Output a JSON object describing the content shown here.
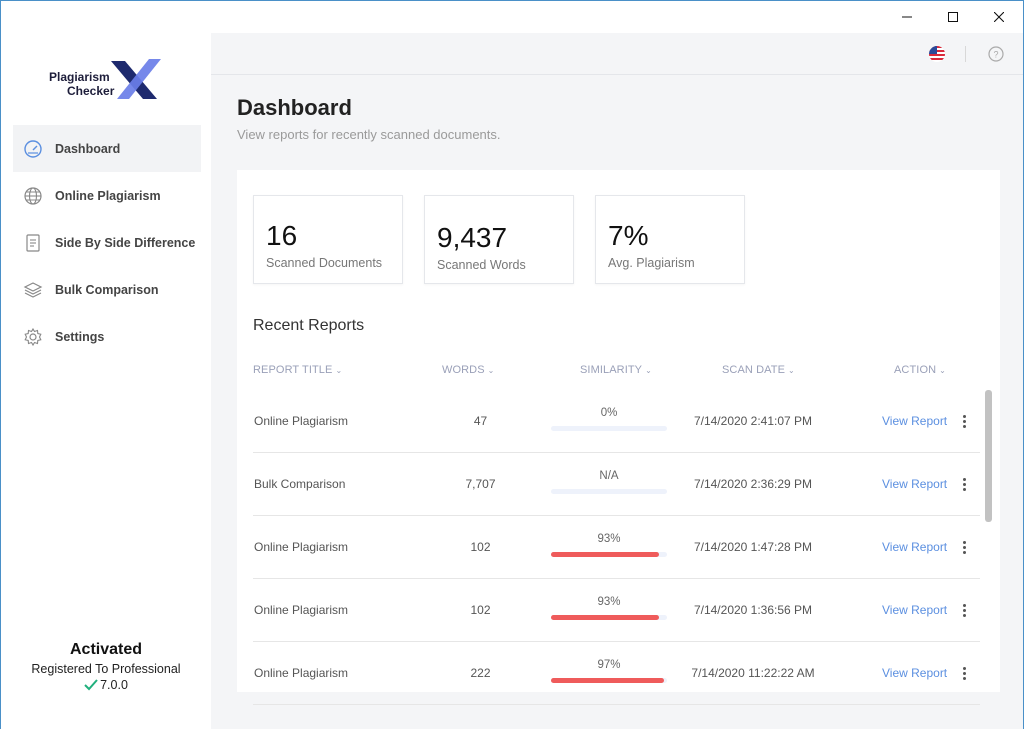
{
  "app": {
    "logo_line1": "Plagiarism",
    "logo_line2": "Checker",
    "logo_mark": "X",
    "brand_colors": {
      "logo_x": "#5b6fe0",
      "logo_x_dark": "#1e2a6e",
      "accent": "#5b8fe0",
      "danger": "#ef5b5b"
    }
  },
  "window_controls": {
    "minimize_icon": "minimize-icon",
    "maximize_icon": "maximize-icon",
    "close_icon": "close-icon"
  },
  "sidebar": {
    "items": [
      {
        "label": "Dashboard",
        "icon": "speedometer-icon",
        "active": true
      },
      {
        "label": "Online Plagiarism",
        "icon": "globe-icon",
        "active": false
      },
      {
        "label": "Side By Side Difference",
        "icon": "document-icon",
        "active": false
      },
      {
        "label": "Bulk Comparison",
        "icon": "layers-icon",
        "active": false
      },
      {
        "label": "Settings",
        "icon": "gear-icon",
        "active": false
      }
    ],
    "activation": {
      "title": "Activated",
      "registered": "Registered To Professional",
      "version": "7.0.0"
    }
  },
  "topbar": {
    "language_icon": "us-flag-icon",
    "help_icon": "help-icon"
  },
  "dashboard": {
    "title": "Dashboard",
    "subtitle": "View reports for recently scanned documents.",
    "stats": [
      {
        "value": "16",
        "label": "Scanned Documents"
      },
      {
        "value": "9,437",
        "label": "Scanned Words"
      },
      {
        "value": "7%",
        "label": "Avg. Plagiarism"
      }
    ],
    "recent_title": "Recent Reports",
    "columns": {
      "title": "REPORT TITLE",
      "words": "WORDS",
      "similarity": "SIMILARITY",
      "date": "SCAN DATE",
      "action": "ACTION"
    },
    "rows": [
      {
        "title": "Online Plagiarism",
        "words": "47",
        "similarity": "0%",
        "similarity_value": 0,
        "date": "7/14/2020 2:41:07 PM",
        "action": "View Report"
      },
      {
        "title": "Bulk Comparison",
        "words": "7,707",
        "similarity": "N/A",
        "similarity_value": 0,
        "date": "7/14/2020 2:36:29 PM",
        "action": "View Report"
      },
      {
        "title": "Online Plagiarism",
        "words": "102",
        "similarity": "93%",
        "similarity_value": 93,
        "date": "7/14/2020 1:47:28 PM",
        "action": "View Report"
      },
      {
        "title": "Online Plagiarism",
        "words": "102",
        "similarity": "93%",
        "similarity_value": 93,
        "date": "7/14/2020 1:36:56 PM",
        "action": "View Report"
      },
      {
        "title": "Online Plagiarism",
        "words": "222",
        "similarity": "97%",
        "similarity_value": 97,
        "date": "7/14/2020 11:22:22 AM",
        "action": "View Report"
      }
    ]
  }
}
